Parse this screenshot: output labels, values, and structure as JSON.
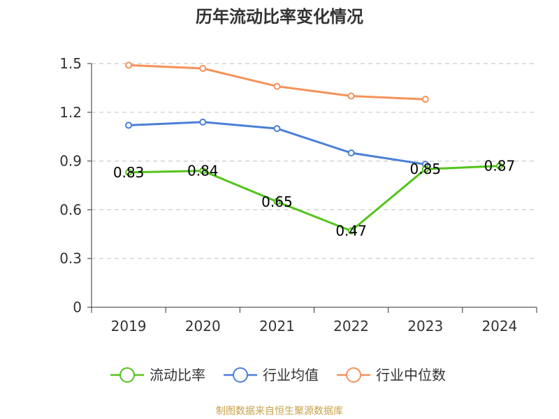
{
  "page": {
    "title": "历年流动比率变化情况",
    "source": "制图数据来自恒生聚源数据库"
  },
  "chart_data": {
    "type": "line",
    "title": "历年流动比率变化情况",
    "categories": [
      "2019",
      "2020",
      "2021",
      "2022",
      "2023",
      "2024"
    ],
    "ylim": [
      0,
      1.5
    ],
    "yticks": [
      0,
      0.3,
      0.6,
      0.9,
      1.2,
      1.5
    ],
    "ytick_labels": [
      "0",
      "0.3",
      "0.6",
      "0.9",
      "1.2",
      "1.5"
    ],
    "grid": true,
    "legend_position": "bottom",
    "series": [
      {
        "name": "流动比率",
        "color": "#52c41a",
        "values": [
          0.83,
          0.84,
          0.65,
          0.47,
          0.85,
          0.87
        ],
        "labels": [
          "0.83",
          "0.84",
          "0.65",
          "0.47",
          "0.85",
          "0.87"
        ],
        "show_labels": true
      },
      {
        "name": "行业均值",
        "color": "#4a7fd8",
        "values": [
          1.12,
          1.14,
          1.1,
          0.95,
          0.88,
          null
        ],
        "show_labels": false
      },
      {
        "name": "行业中位数",
        "color": "#f5925a",
        "values": [
          1.49,
          1.47,
          1.36,
          1.3,
          1.28,
          null
        ],
        "show_labels": false
      }
    ]
  }
}
